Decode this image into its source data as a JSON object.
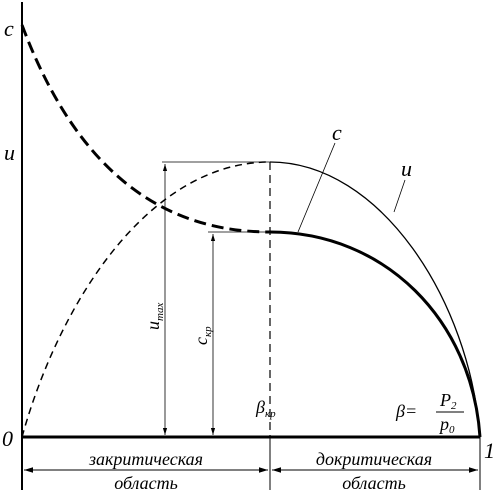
{
  "axes": {
    "y_top_label": "c",
    "y_mid_label": "u",
    "origin_label": "0",
    "x_end_label": "1"
  },
  "curve_labels": {
    "c": "c",
    "u": "u"
  },
  "beta_critical": {
    "text": "β",
    "sub": "кр"
  },
  "u_max": {
    "text": "u",
    "sub": "max"
  },
  "c_critical": {
    "text": "c",
    "sub": "кр"
  },
  "beta_formula": {
    "lhs": "β=",
    "numerator": {
      "text": "P",
      "sub": "2"
    },
    "denominator": {
      "text": "p",
      "sub": "0"
    }
  },
  "regions": [
    {
      "name": "закритическая",
      "word": "область"
    },
    {
      "name": "докритическая",
      "word": "область"
    }
  ]
}
